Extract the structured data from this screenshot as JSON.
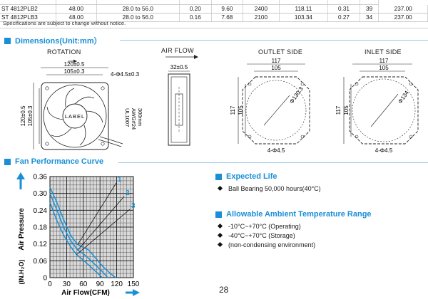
{
  "spec_table": {
    "rows": [
      [
        "",
        "",
        "",
        "",
        "",
        "",
        "",
        "",
        ""
      ],
      [
        "ST 4812PLB2",
        "48.00",
        "28.0 to 56.0",
        "0.20",
        "9.60",
        "2400",
        "118.11",
        "0.31",
        "39",
        "237.00"
      ],
      [
        "ST 4812PLB3",
        "48.00",
        "28.0 to 56.0",
        "0.16",
        "7.68",
        "2100",
        "103.34",
        "0.27",
        "34",
        "237.00"
      ]
    ],
    "note": "Specifications are subject to change without notice."
  },
  "dimensions": {
    "title": "Dimensions(Unit:mm）",
    "front_view": {
      "label": "ROTATION",
      "dim_top1": "120±0.5",
      "dim_top2": "105±0.3",
      "hole_note": "4-Φ4.5±0.3",
      "dim_left1": "120±0.5",
      "dim_left2": "105±0.3",
      "hub_label": "LABEL",
      "wire_note": [
        "UL1007",
        "AWG#24",
        "300mm"
      ]
    },
    "side_view": {
      "label": "AIR FLOW",
      "dim_depth": "32±0.5"
    },
    "outlet_side": {
      "label": "OUTLET SIDE",
      "dim_outer": "117",
      "dim_inner": "105",
      "dim_left_outer": "117",
      "dim_left_inner": "105",
      "diameter": "Φ130.3",
      "hole_note": "4-Φ4.5"
    },
    "inlet_side": {
      "label": "INLET SIDE",
      "dim_outer": "117",
      "dim_inner": "105",
      "dim_left_outer": "117",
      "dim_left_inner": "105",
      "diameter": "Φ134",
      "hole_note": "4-Φ4.5"
    }
  },
  "fan_performance": {
    "title": "Fan Performance Curve"
  },
  "chart_data": {
    "type": "line",
    "title": "",
    "xlabel": "Air Flow(CFM)",
    "ylabel": "Air Pressure",
    "ylabel_unit": "(IN.H₂O)",
    "xlim": [
      0,
      150
    ],
    "ylim": [
      0,
      0.36
    ],
    "x_ticks": [
      "0",
      "30",
      "60",
      "90",
      "120",
      "150"
    ],
    "y_ticks": [
      "0",
      "0.06",
      "0.12",
      "0.18",
      "0.24",
      "0.30",
      "0.36"
    ],
    "grid": true,
    "legend": "callout labels at upper right of curves",
    "series": [
      {
        "name": "1",
        "color": "#1a8fd6",
        "points": [
          [
            0,
            0.322
          ],
          [
            12,
            0.27
          ],
          [
            25,
            0.205
          ],
          [
            38,
            0.148
          ],
          [
            50,
            0.118
          ],
          [
            60,
            0.108
          ],
          [
            70,
            0.098
          ],
          [
            82,
            0.07
          ],
          [
            95,
            0.04
          ],
          [
            108,
            0.016
          ],
          [
            118,
            0.0
          ]
        ]
      },
      {
        "name": "2",
        "color": "#1a8fd6",
        "points": [
          [
            0,
            0.3
          ],
          [
            12,
            0.243
          ],
          [
            25,
            0.178
          ],
          [
            38,
            0.13
          ],
          [
            50,
            0.098
          ],
          [
            60,
            0.085
          ],
          [
            70,
            0.068
          ],
          [
            82,
            0.045
          ],
          [
            95,
            0.02
          ],
          [
            104,
            0.0
          ]
        ]
      },
      {
        "name": "3",
        "color": "#1a8fd6",
        "points": [
          [
            0,
            0.268
          ],
          [
            12,
            0.205
          ],
          [
            25,
            0.15
          ],
          [
            38,
            0.108
          ],
          [
            48,
            0.082
          ],
          [
            58,
            0.066
          ],
          [
            68,
            0.048
          ],
          [
            78,
            0.03
          ],
          [
            88,
            0.012
          ],
          [
            94,
            0.0
          ]
        ]
      }
    ]
  },
  "expected_life": {
    "title": "Expected Life",
    "items": [
      "Ball Bearing 50,000 hours(40°C)"
    ]
  },
  "ambient_temperature": {
    "title": "Allowable Ambient Temperature Range",
    "items": [
      "-10°C~+70°C (Operating)",
      "-40°C~+70°C (Storage)",
      "(non-condensing environment)"
    ]
  },
  "page_number": "28"
}
